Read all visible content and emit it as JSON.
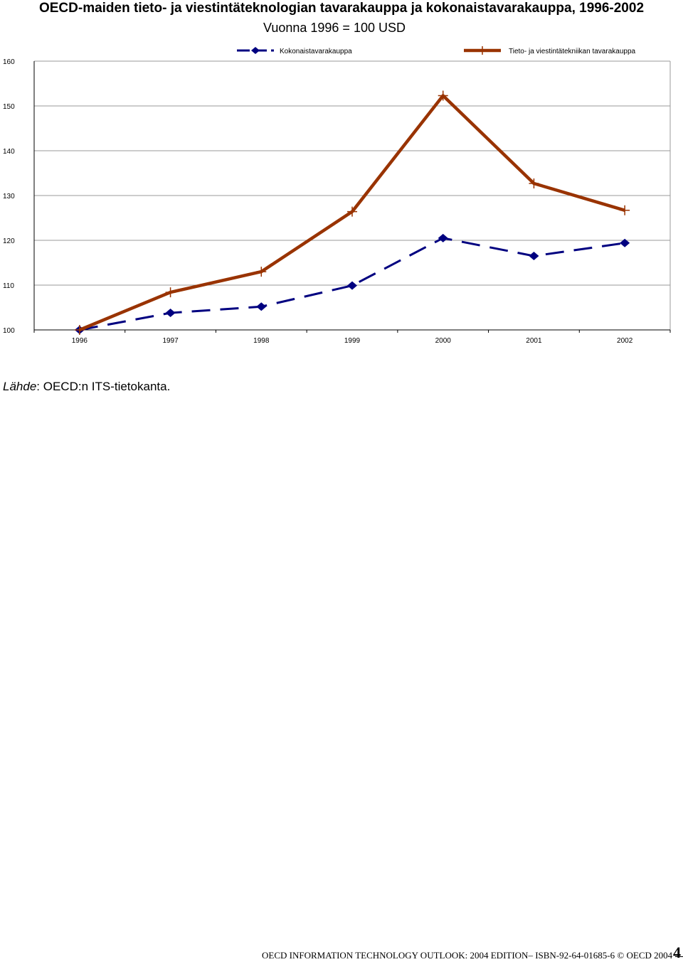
{
  "header": {
    "title": "OECD-maiden tieto- ja viestintäteknologian tavarakauppa ja kokonaistavarakauppa, 1996-2002",
    "subtitle": "Vuonna 1996 = 100 USD"
  },
  "source": {
    "label": "Lähde",
    "text": ": OECD:n ITS-tietokanta."
  },
  "footer": {
    "text": "OECD INFORMATION TECHNOLOGY OUTLOOK: 2004 EDITION– ISBN-92-64-01685-6 © OECD 2004",
    "page_number": "4"
  },
  "chart_data": {
    "type": "line",
    "title": "",
    "xlabel": "",
    "ylabel": "",
    "categories": [
      "1996",
      "1997",
      "1998",
      "1999",
      "2000",
      "2001",
      "2002"
    ],
    "ylim": [
      100,
      160
    ],
    "yticks": [
      "100",
      "110",
      "120",
      "130",
      "140",
      "150",
      "160"
    ],
    "grid": true,
    "legend_position": "top",
    "series": [
      {
        "name": "Kokonaistavarakauppa",
        "values": [
          100,
          103.8,
          105.2,
          109.9,
          120.5,
          116.5,
          119.4
        ],
        "color": "#000080",
        "line_style": "dashed",
        "marker": "diamond"
      },
      {
        "name": "Tieto- ja viestintätekniikan tavarakauppa",
        "values": [
          100,
          108.4,
          113,
          126.4,
          152.3,
          132.7,
          126.7
        ],
        "color": "#993300",
        "line_style": "solid",
        "marker": "plus"
      }
    ]
  }
}
